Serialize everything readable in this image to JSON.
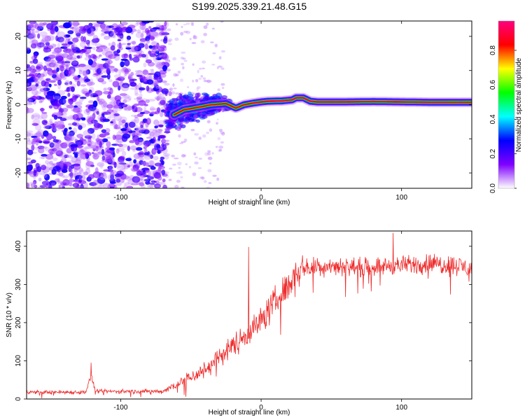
{
  "title": "S199.2025.339.21.48.G15",
  "chart_data": [
    {
      "type": "heatmap",
      "xlabel": "Height of straight line (km)",
      "ylabel": "Frequency (Hz)",
      "xlim": [
        -167,
        150
      ],
      "ylim": [
        -24.5,
        24.5
      ],
      "xticks": [
        -100,
        0,
        100
      ],
      "yticks": [
        -20,
        -10,
        0,
        10,
        20
      ],
      "colorbar": {
        "label": "Normalized spectral amplitude",
        "range": [
          0,
          0.97
        ],
        "ticks": [
          0.0,
          0.2,
          0.4,
          0.6,
          0.8
        ],
        "tick_labels": [
          "0.0",
          "0.2",
          "0.4",
          "0.6",
          "0.8"
        ],
        "colors": [
          "#ffffff",
          "#7f00ff",
          "#0000ff",
          "#00ffff",
          "#00ff00",
          "#ffff00",
          "#ff0000",
          "#ff0080"
        ]
      },
      "noise_region_x": [
        -167,
        -67
      ],
      "transition_region_x": [
        -67,
        -10
      ],
      "ridge": {
        "x": [
          -62,
          -55,
          -45,
          -35,
          -25,
          -18,
          -12,
          -5,
          0,
          5,
          15,
          22,
          25,
          30,
          35,
          40,
          60,
          80,
          100,
          120,
          150
        ],
        "freq": [
          -3,
          -1.5,
          -0.8,
          0,
          0.3,
          -1,
          0,
          0.5,
          0.8,
          1,
          1.1,
          1.4,
          2,
          2,
          1,
          0.8,
          0.8,
          0.9,
          0.8,
          0.7,
          0.7
        ]
      }
    },
    {
      "type": "line",
      "xlabel": "Height of straight line (km)",
      "ylabel": "SNR (10 * v/v)",
      "xlim": [
        -167,
        150
      ],
      "ylim": [
        0,
        440
      ],
      "xticks": [
        -100,
        0,
        100
      ],
      "yticks": [
        0,
        100,
        200,
        300,
        400
      ],
      "color": "#ee2c2c",
      "envelope": {
        "x": [
          -167,
          -125,
          -121,
          -118,
          -70,
          -60,
          -40,
          -30,
          -20,
          -10,
          0,
          10,
          20,
          25,
          30,
          40,
          50,
          70,
          100,
          120,
          140,
          150
        ],
        "mean": [
          18,
          18,
          60,
          20,
          20,
          40,
          75,
          110,
          140,
          170,
          205,
          255,
          300,
          340,
          345,
          345,
          350,
          345,
          350,
          355,
          350,
          340
        ],
        "spread": [
          8,
          8,
          15,
          8,
          8,
          22,
          35,
          40,
          45,
          50,
          55,
          60,
          60,
          50,
          45,
          40,
          35,
          35,
          35,
          40,
          40,
          40
        ]
      },
      "notable_points": [
        {
          "x": -121,
          "y": 95
        },
        {
          "x": -9,
          "y": 398
        },
        {
          "x": 94,
          "y": 435
        }
      ]
    }
  ]
}
